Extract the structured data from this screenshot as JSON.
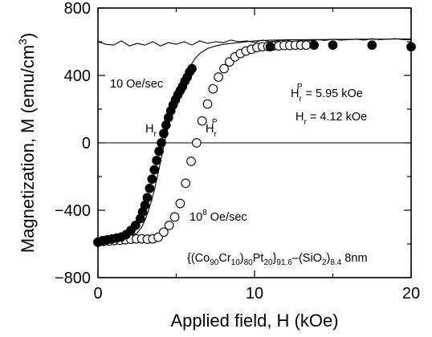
{
  "chart_data": {
    "type": "scatter",
    "xlabel": "Applied field, H (kOe)",
    "ylabel_main": "Magnetization, M (emu/cm",
    "ylabel_sup": "3",
    "ylabel_tail": ")",
    "xlim": [
      0,
      20
    ],
    "ylim": [
      -800,
      800
    ],
    "x_ticks": [
      "0",
      "10",
      "20"
    ],
    "y_ticks": [
      "800",
      "400",
      "0",
      "−400",
      "−800"
    ],
    "grid": false,
    "annotations": {
      "rate_slow": "10 Oe/sec",
      "rate_fast_base": "10",
      "rate_fast_sup": "8",
      "rate_fast_tail": " Oe/sec",
      "hr_label_base": "H",
      "hr_label_sub": "r",
      "hrp_label_base": "H",
      "hrp_label_sub": "r",
      "hrp_label_sup": "P",
      "hrp_value_base": "H",
      "hrp_value_sub": "r",
      "hrp_value_sup": "P",
      "hrp_value_tail": " = 5.95 kOe",
      "hr_value_base": "H",
      "hr_value_sub": "r",
      "hr_value_tail": " = 4.12 kOe",
      "composition": {
        "p1": "{(Co",
        "s1": "90",
        "p2": "Cr",
        "s2": "10",
        "p3": ")",
        "s3": "80",
        "p4": "Pt",
        "s4": "20",
        "p5": "}",
        "s5": "91.6",
        "p6": "–(SiO",
        "s6": "2",
        "p7": ")",
        "s7": "8.4",
        "p8": " 8nm"
      }
    },
    "series": [
      {
        "marker": "filled-circle",
        "x": [
          0.0,
          0.3,
          0.6,
          0.9,
          1.2,
          1.5,
          1.8,
          2.1,
          2.4,
          2.7,
          2.85,
          3.0,
          3.15,
          3.3,
          3.45,
          3.6,
          3.75,
          3.9,
          4.05,
          4.2,
          4.35,
          4.5,
          4.65,
          4.8,
          4.95,
          5.1,
          5.25,
          5.4,
          5.55,
          5.7,
          5.85,
          6.0,
          11.0,
          13.8,
          15.0,
          17.5,
          20.0
        ],
        "y": [
          -590,
          -580,
          -575,
          -570,
          -565,
          -558,
          -545,
          -520,
          -490,
          -450,
          -410,
          -370,
          -325,
          -270,
          -215,
          -160,
          -105,
          -50,
          0,
          55,
          105,
          150,
          190,
          225,
          255,
          285,
          310,
          335,
          365,
          390,
          420,
          440,
          570,
          580,
          580,
          580,
          570
        ]
      },
      {
        "marker": "open-circle",
        "x": [
          0.0,
          0.35,
          0.7,
          1.05,
          1.4,
          1.75,
          2.1,
          2.45,
          2.8,
          3.15,
          3.5,
          3.85,
          4.2,
          4.55,
          4.9,
          5.25,
          5.6,
          5.95,
          6.3,
          6.65,
          7.0,
          7.35,
          7.7,
          8.05,
          8.4,
          8.75,
          9.1,
          9.45,
          9.8,
          10.15,
          10.5,
          10.85,
          11.2,
          11.55,
          11.9,
          12.25,
          12.6,
          12.95,
          13.3
        ],
        "y": [
          -590,
          -585,
          -583,
          -580,
          -578,
          -575,
          -572,
          -570,
          -570,
          -572,
          -570,
          -560,
          -530,
          -490,
          -440,
          -360,
          -240,
          -110,
          0,
          130,
          230,
          320,
          390,
          440,
          480,
          510,
          530,
          545,
          555,
          565,
          570,
          572,
          575,
          575,
          578,
          578,
          580,
          580,
          580
        ]
      },
      {
        "marker": "line",
        "x": [
          0.0,
          0.5,
          1.0,
          1.5,
          2.0,
          2.5,
          2.8,
          3.0,
          3.2,
          3.4,
          3.6,
          3.8,
          4.0,
          4.2,
          4.4,
          4.6,
          4.8,
          5.0,
          5.2,
          5.4,
          5.6,
          5.8,
          6.0,
          6.2,
          6.5,
          7.0,
          7.5,
          8.0,
          8.5,
          9.0,
          9.5,
          10.0,
          10.5,
          11.0,
          11.5,
          12.0,
          12.5,
          13.0,
          13.5,
          14.0,
          14.5,
          15.0,
          15.5,
          16.0,
          16.5,
          17.0,
          17.5,
          18.0,
          18.5,
          19.0,
          19.5,
          20.0
        ],
        "y": [
          -585,
          -582,
          -578,
          -572,
          -560,
          -535,
          -500,
          -460,
          -410,
          -350,
          -280,
          -200,
          -110,
          -20,
          60,
          140,
          210,
          270,
          320,
          360,
          400,
          440,
          470,
          500,
          530,
          560,
          575,
          585,
          590,
          595,
          600,
          605,
          607,
          609,
          610,
          611,
          612,
          612,
          613,
          613,
          613,
          614,
          614,
          614,
          615,
          615,
          615,
          615,
          615,
          616,
          616,
          616
        ]
      },
      {
        "marker": "line",
        "x": [
          0.0,
          0.5,
          1.0,
          1.5,
          2.0,
          2.5,
          3.0,
          3.5,
          4.0,
          4.5,
          5.0,
          5.5,
          6.0,
          6.5,
          7.0,
          7.5,
          8.0,
          8.5,
          9.0,
          9.5,
          10.0,
          10.5,
          11.0,
          11.5,
          12.0,
          12.5,
          13.0,
          13.5,
          14.0,
          14.5,
          15.0,
          15.5,
          16.0,
          16.5,
          17.0,
          17.5,
          18.0,
          18.5,
          19.0,
          19.5,
          20.0
        ],
        "y": [
          600,
          585,
          580,
          605,
          575,
          590,
          580,
          600,
          575,
          595,
          585,
          600,
          580,
          605,
          590,
          600,
          595,
          610,
          600,
          605,
          595,
          610,
          600,
          605,
          610,
          600,
          610,
          605,
          612,
          608,
          615,
          610,
          612,
          615,
          610,
          618,
          612,
          615,
          618,
          612,
          612
        ]
      }
    ]
  }
}
